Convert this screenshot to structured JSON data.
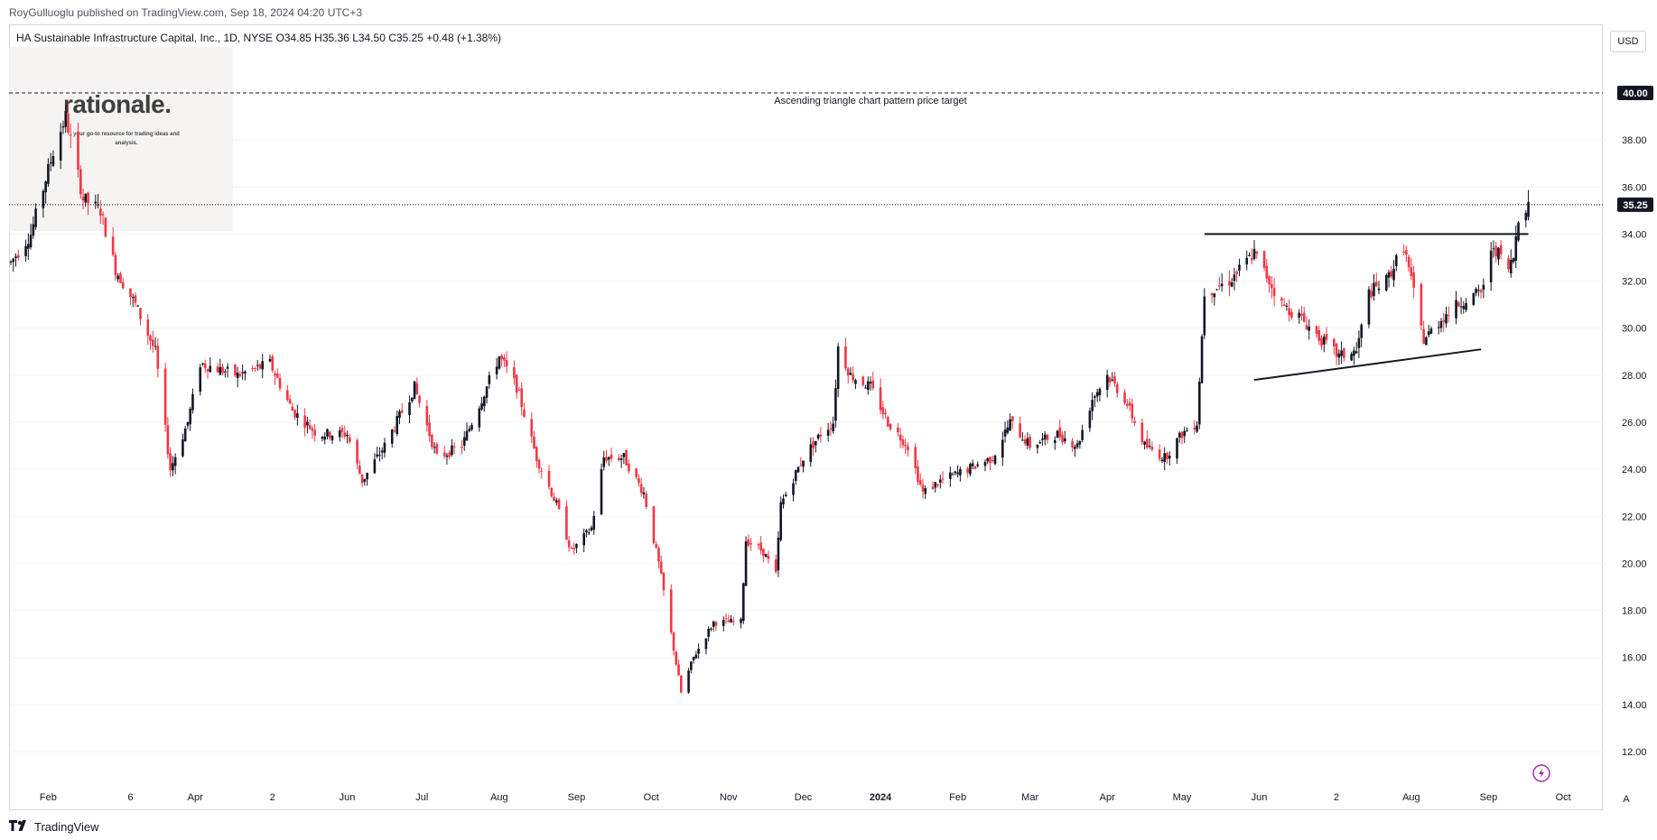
{
  "header": {
    "attribution": "RoyGulluoglu published on TradingView.com, Sep 18, 2024 04:20 UTC+3",
    "legend": "HA Sustainable Infrastructure Capital, Inc., 1D, NYSE  O34.85  H35.36  L34.50  C35.25  +0.48 (+1.38%)",
    "currency_button": "USD"
  },
  "watermark": {
    "logo": "rationale.",
    "tagline": "your go-to resource for trading ideas and analysis."
  },
  "footer": {
    "brand_icon": "tradingview-logo-icon",
    "brand_text": "TradingView",
    "auto_scale": "A"
  },
  "colors": {
    "up": "#26a69a",
    "down": "#ef5350",
    "candle_up": "#131722",
    "candle_down": "#f23645",
    "line": "#131722",
    "axis_text": "#131722",
    "badge_bg": "#131722",
    "grid": "#f0f3fa",
    "lightning_icon": "#9c27b0"
  },
  "chart_data": {
    "type": "candlestick",
    "symbol": "HA Sustainable Infrastructure Capital, Inc.",
    "interval": "1D",
    "exchange": "NYSE",
    "ohlc_last": {
      "open": 34.85,
      "high": 35.36,
      "low": 34.5,
      "close": 35.25,
      "change": 0.48,
      "change_pct": 1.38
    },
    "ylim": [
      11.0,
      42.0
    ],
    "y_ticks": [
      12.0,
      14.0,
      16.0,
      18.0,
      20.0,
      22.0,
      24.0,
      26.0,
      28.0,
      30.0,
      32.0,
      34.0,
      36.0,
      38.0,
      40.0
    ],
    "y_tick_labels": [
      "12.00",
      "14.00",
      "16.00",
      "18.00",
      "20.00",
      "22.00",
      "24.00",
      "26.00",
      "28.00",
      "30.00",
      "32.00",
      "34.00",
      "36.00",
      "38.00",
      "40.00"
    ],
    "x_ticks": [
      {
        "date": "2023-02-01",
        "label": "Feb"
      },
      {
        "date": "2023-03-06",
        "label": "6"
      },
      {
        "date": "2023-04-01",
        "label": "Apr"
      },
      {
        "date": "2023-05-02",
        "label": "2"
      },
      {
        "date": "2023-06-01",
        "label": "Jun"
      },
      {
        "date": "2023-07-01",
        "label": "Jul"
      },
      {
        "date": "2023-08-01",
        "label": "Aug"
      },
      {
        "date": "2023-09-01",
        "label": "Sep"
      },
      {
        "date": "2023-10-01",
        "label": "Oct"
      },
      {
        "date": "2023-11-01",
        "label": "Nov"
      },
      {
        "date": "2023-12-01",
        "label": "Dec"
      },
      {
        "date": "2024-01-01",
        "label": "2024"
      },
      {
        "date": "2024-02-01",
        "label": "Feb"
      },
      {
        "date": "2024-03-01",
        "label": "Mar"
      },
      {
        "date": "2024-04-01",
        "label": "Apr"
      },
      {
        "date": "2024-05-01",
        "label": "May"
      },
      {
        "date": "2024-06-01",
        "label": "Jun"
      },
      {
        "date": "2024-07-02",
        "label": "2"
      },
      {
        "date": "2024-08-01",
        "label": "Aug"
      },
      {
        "date": "2024-09-01",
        "label": "Sep"
      },
      {
        "date": "2024-10-01",
        "label": "Oct"
      }
    ],
    "price_path": [
      {
        "date": "2023-01-17",
        "price": 32.8
      },
      {
        "date": "2023-01-25",
        "price": 34.0
      },
      {
        "date": "2023-02-03",
        "price": 37.5
      },
      {
        "date": "2023-02-08",
        "price": 39.0
      },
      {
        "date": "2023-02-15",
        "price": 35.5
      },
      {
        "date": "2023-02-22",
        "price": 35.0
      },
      {
        "date": "2023-02-28",
        "price": 32.5
      },
      {
        "date": "2023-03-08",
        "price": 31.0
      },
      {
        "date": "2023-03-16",
        "price": 29.0
      },
      {
        "date": "2023-03-22",
        "price": 24.0
      },
      {
        "date": "2023-03-29",
        "price": 26.0
      },
      {
        "date": "2023-04-03",
        "price": 28.5
      },
      {
        "date": "2023-04-18",
        "price": 28.0
      },
      {
        "date": "2023-05-01",
        "price": 28.5
      },
      {
        "date": "2023-05-10",
        "price": 26.5
      },
      {
        "date": "2023-05-20",
        "price": 25.5
      },
      {
        "date": "2023-06-01",
        "price": 25.5
      },
      {
        "date": "2023-06-07",
        "price": 23.5
      },
      {
        "date": "2023-06-16",
        "price": 25.0
      },
      {
        "date": "2023-06-28",
        "price": 27.5
      },
      {
        "date": "2023-07-07",
        "price": 24.5
      },
      {
        "date": "2023-07-17",
        "price": 25.0
      },
      {
        "date": "2023-07-25",
        "price": 27.0
      },
      {
        "date": "2023-08-01",
        "price": 28.8
      },
      {
        "date": "2023-08-08",
        "price": 27.5
      },
      {
        "date": "2023-08-16",
        "price": 24.5
      },
      {
        "date": "2023-08-24",
        "price": 22.5
      },
      {
        "date": "2023-08-30",
        "price": 20.5
      },
      {
        "date": "2023-09-07",
        "price": 21.5
      },
      {
        "date": "2023-09-12",
        "price": 24.5
      },
      {
        "date": "2023-09-20",
        "price": 24.5
      },
      {
        "date": "2023-09-28",
        "price": 23.0
      },
      {
        "date": "2023-10-04",
        "price": 20.0
      },
      {
        "date": "2023-10-09",
        "price": 17.0
      },
      {
        "date": "2023-10-13",
        "price": 14.5
      },
      {
        "date": "2023-10-18",
        "price": 16.0
      },
      {
        "date": "2023-10-26",
        "price": 17.5
      },
      {
        "date": "2023-11-06",
        "price": 17.5
      },
      {
        "date": "2023-11-08",
        "price": 21.0
      },
      {
        "date": "2023-11-15",
        "price": 20.5
      },
      {
        "date": "2023-11-20",
        "price": 19.5
      },
      {
        "date": "2023-11-22",
        "price": 22.5
      },
      {
        "date": "2023-12-01",
        "price": 24.5
      },
      {
        "date": "2023-12-08",
        "price": 25.5
      },
      {
        "date": "2023-12-13",
        "price": 26.0
      },
      {
        "date": "2023-12-15",
        "price": 29.2
      },
      {
        "date": "2023-12-20",
        "price": 28.0
      },
      {
        "date": "2023-12-28",
        "price": 27.5
      },
      {
        "date": "2024-01-04",
        "price": 26.0
      },
      {
        "date": "2024-01-12",
        "price": 25.0
      },
      {
        "date": "2024-01-18",
        "price": 23.0
      },
      {
        "date": "2024-01-25",
        "price": 23.5
      },
      {
        "date": "2024-02-05",
        "price": 24.0
      },
      {
        "date": "2024-02-15",
        "price": 24.5
      },
      {
        "date": "2024-02-22",
        "price": 26.0
      },
      {
        "date": "2024-03-01",
        "price": 25.0
      },
      {
        "date": "2024-03-12",
        "price": 25.5
      },
      {
        "date": "2024-03-20",
        "price": 25.0
      },
      {
        "date": "2024-03-26",
        "price": 27.0
      },
      {
        "date": "2024-04-01",
        "price": 28.0
      },
      {
        "date": "2024-04-08",
        "price": 27.0
      },
      {
        "date": "2024-04-16",
        "price": 25.0
      },
      {
        "date": "2024-04-24",
        "price": 24.5
      },
      {
        "date": "2024-05-01",
        "price": 25.5
      },
      {
        "date": "2024-05-07",
        "price": 26.0
      },
      {
        "date": "2024-05-10",
        "price": 31.5
      },
      {
        "date": "2024-05-20",
        "price": 32.0
      },
      {
        "date": "2024-05-30",
        "price": 33.2
      },
      {
        "date": "2024-06-10",
        "price": 31.0
      },
      {
        "date": "2024-06-17",
        "price": 30.5
      },
      {
        "date": "2024-06-26",
        "price": 29.5
      },
      {
        "date": "2024-07-03",
        "price": 28.8
      },
      {
        "date": "2024-07-10",
        "price": 29.0
      },
      {
        "date": "2024-07-15",
        "price": 31.5
      },
      {
        "date": "2024-07-22",
        "price": 32.0
      },
      {
        "date": "2024-07-29",
        "price": 33.5
      },
      {
        "date": "2024-08-06",
        "price": 29.5
      },
      {
        "date": "2024-08-14",
        "price": 30.5
      },
      {
        "date": "2024-08-22",
        "price": 31.2
      },
      {
        "date": "2024-08-29",
        "price": 31.5
      },
      {
        "date": "2024-09-03",
        "price": 33.5
      },
      {
        "date": "2024-09-09",
        "price": 32.5
      },
      {
        "date": "2024-09-11",
        "price": 33.0
      },
      {
        "date": "2024-09-13",
        "price": 34.8
      },
      {
        "date": "2024-09-17",
        "price": 35.25
      }
    ],
    "drawings": {
      "resistance": {
        "x": [
          "2024-05-10",
          "2024-09-17"
        ],
        "y": [
          34.0,
          34.0
        ]
      },
      "support": {
        "x": [
          "2024-05-30",
          "2024-08-29"
        ],
        "y": [
          27.8,
          29.1
        ]
      },
      "target": {
        "y": 40.0,
        "label": "Ascending triangle chart pattern price target"
      },
      "last_price_line": {
        "y": 35.25
      }
    },
    "price_badges": [
      {
        "value": 40.0,
        "label": "40.00"
      },
      {
        "value": 35.25,
        "label": "35.25"
      }
    ]
  }
}
